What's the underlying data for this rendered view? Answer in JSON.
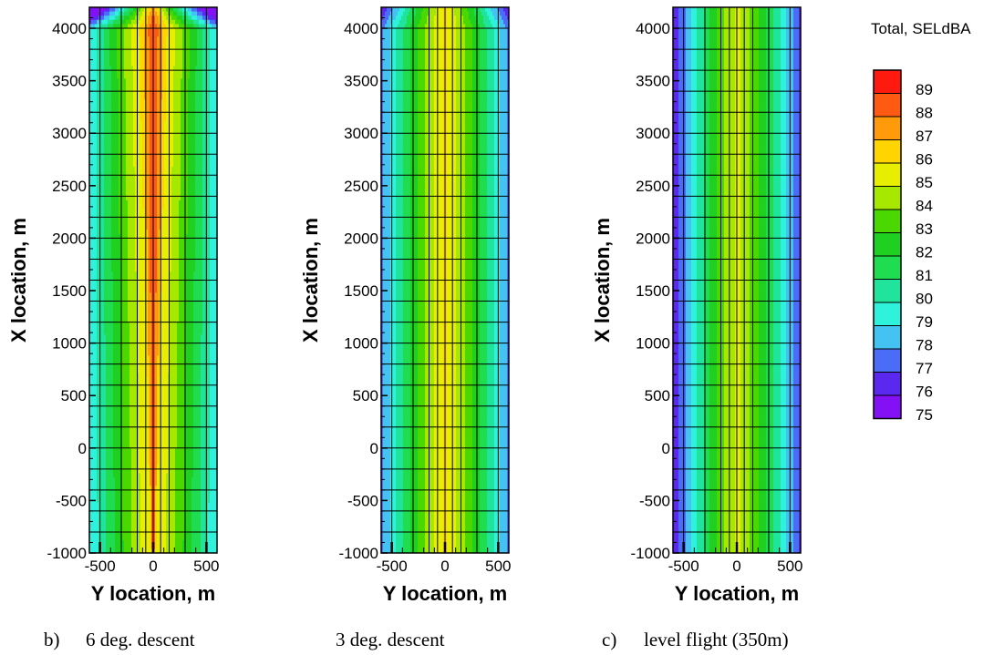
{
  "chart_data": {
    "type": "heatmap",
    "panels": [
      {
        "id": "six_deg",
        "caption_letter": "b)",
        "caption": "6 deg. descent",
        "xlabel": "Y location, m",
        "ylabel": "X location, m",
        "xlim": [
          -600,
          600
        ],
        "ylim": [
          -1000,
          4200
        ],
        "x_ticks": [
          -500,
          0,
          500
        ],
        "y_ticks": [
          -1000,
          -500,
          0,
          500,
          1000,
          1500,
          2000,
          2500,
          3000,
          3500,
          4000
        ],
        "grid": true,
        "peak_level_dBA": 89,
        "edge_level_dBA": 79
      },
      {
        "id": "three_deg",
        "caption_letter": "",
        "caption": "3 deg. descent",
        "xlabel": "Y location, m",
        "ylabel": "X location, m",
        "xlim": [
          -600,
          600
        ],
        "ylim": [
          -1000,
          4200
        ],
        "x_ticks": [
          -500,
          0,
          500
        ],
        "y_ticks": [
          -1000,
          -500,
          0,
          500,
          1000,
          1500,
          2000,
          2500,
          3000,
          3500,
          4000
        ],
        "grid": true,
        "peak_level_dBA": 86,
        "edge_level_dBA": 78
      },
      {
        "id": "level",
        "caption_letter": "c)",
        "caption": "level flight (350m)",
        "xlabel": "Y location, m",
        "ylabel": "X location, m",
        "xlim": [
          -600,
          600
        ],
        "ylim": [
          -1000,
          4200
        ],
        "x_ticks": [
          -500,
          0,
          500
        ],
        "y_ticks": [
          -1000,
          -500,
          0,
          500,
          1000,
          1500,
          2000,
          2500,
          3000,
          3500,
          4000
        ],
        "grid": true,
        "peak_level_dBA": 85,
        "edge_level_dBA": 77
      }
    ],
    "legend": {
      "title": "Total, SELdBA",
      "placement": "right",
      "levels": [
        89,
        88,
        87,
        86,
        85,
        84,
        83,
        82,
        81,
        80,
        79,
        78,
        77,
        76,
        75
      ],
      "colors": [
        "#ff1a10",
        "#ff5a12",
        "#ff9a0a",
        "#ffd400",
        "#e8ee00",
        "#a6e800",
        "#4ad800",
        "#20d020",
        "#20dc50",
        "#20e49c",
        "#2ef2dc",
        "#44c2f2",
        "#4a6cf6",
        "#5a28ee",
        "#8410f6"
      ]
    }
  }
}
